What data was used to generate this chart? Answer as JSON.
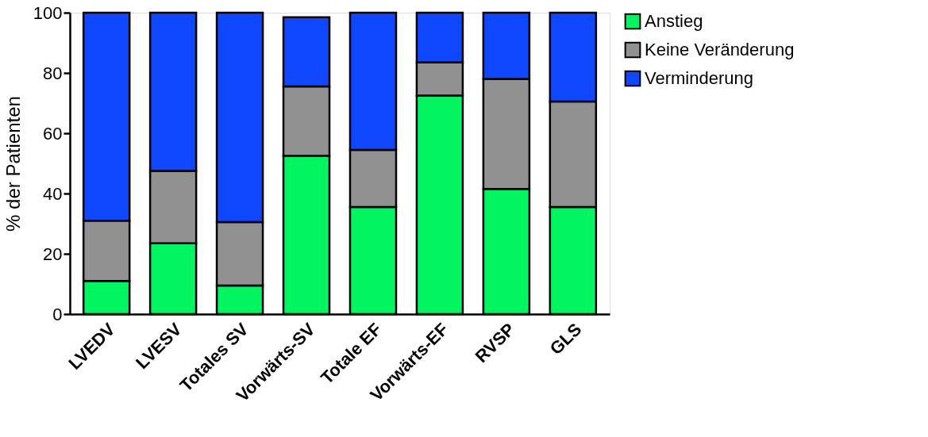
{
  "chart_data": {
    "type": "bar",
    "stacked": true,
    "ylabel": "% der Patienten",
    "categories": [
      "LVEDV",
      "LVESV",
      "Totales SV",
      "Vorwärts-SV",
      "Totale EF",
      "Vorwärts-EF",
      "RVSP",
      "GLS"
    ],
    "series": [
      {
        "name": "Anstieg",
        "color": "#00f560",
        "values": [
          11,
          23.5,
          9.5,
          52.5,
          35.5,
          72.5,
          41.5,
          35.5
        ]
      },
      {
        "name": "Keine Veränderung",
        "color": "#919191",
        "values": [
          20,
          24,
          21,
          23,
          19,
          11,
          36.5,
          35
        ]
      },
      {
        "name": "Verminderung",
        "color": "#0f47ff",
        "values": [
          69,
          52.5,
          69.5,
          23,
          45.5,
          16.5,
          22,
          29.5
        ]
      }
    ],
    "ylim": [
      0,
      100
    ],
    "yticks": [
      0,
      20,
      40,
      60,
      80,
      100
    ],
    "grid": false,
    "legend": "top right"
  }
}
